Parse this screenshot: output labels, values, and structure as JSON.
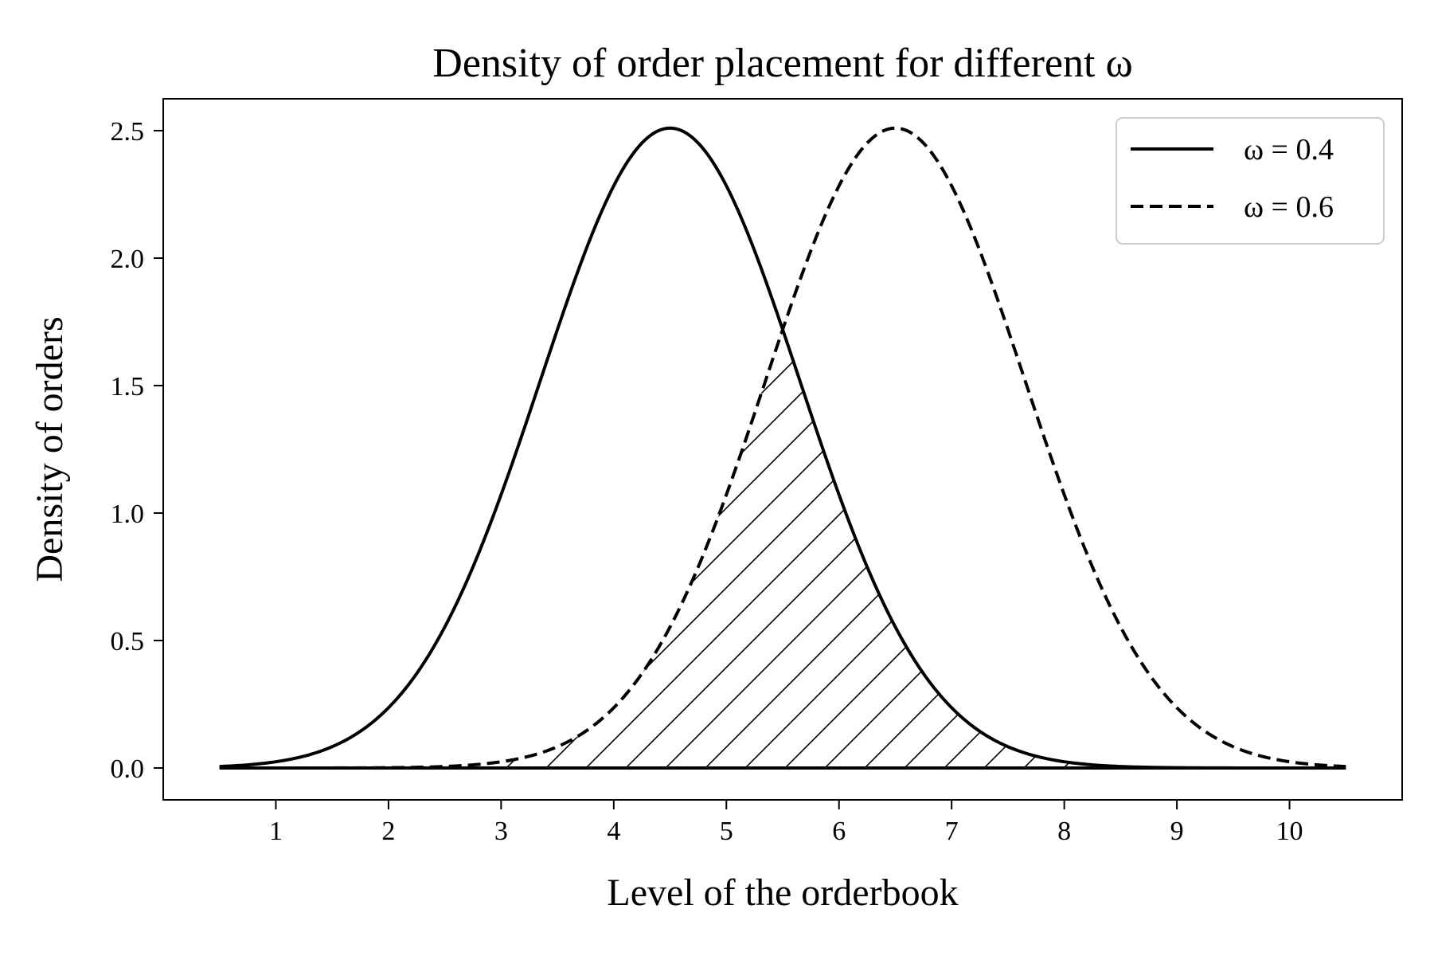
{
  "chart_data": {
    "type": "line",
    "title": "Density of order placement for different ω",
    "xlabel": "Level of the orderbook",
    "ylabel": "Density of orders",
    "xlim": [
      0.0,
      11.0
    ],
    "ylim": [
      -0.125,
      2.625
    ],
    "xticks": [
      1,
      2,
      3,
      4,
      5,
      6,
      7,
      8,
      9,
      10
    ],
    "yticks": [
      0.0,
      0.5,
      1.0,
      1.5,
      2.0,
      2.5
    ],
    "ytick_labels": [
      "0.0",
      "0.5",
      "1.0",
      "1.5",
      "2.0",
      "2.5"
    ],
    "x_range": [
      0.5,
      10.5
    ],
    "grid": false,
    "legend_position": "top-right",
    "series": [
      {
        "name": "ω = 0.4",
        "style": "solid",
        "peak_x": 4.5,
        "peak_y": 2.51,
        "sigma": 1.15
      },
      {
        "name": "ω = 0.6",
        "style": "dashed",
        "peak_x": 6.5,
        "peak_y": 2.51,
        "sigma": 1.15
      }
    ],
    "shaded_region": {
      "description_key": "overlap",
      "pattern": "hatch",
      "bounds": "min of both curves"
    },
    "colors": {
      "line": "#000000",
      "background": "#ffffff",
      "legend_border": "#cccccc"
    }
  }
}
